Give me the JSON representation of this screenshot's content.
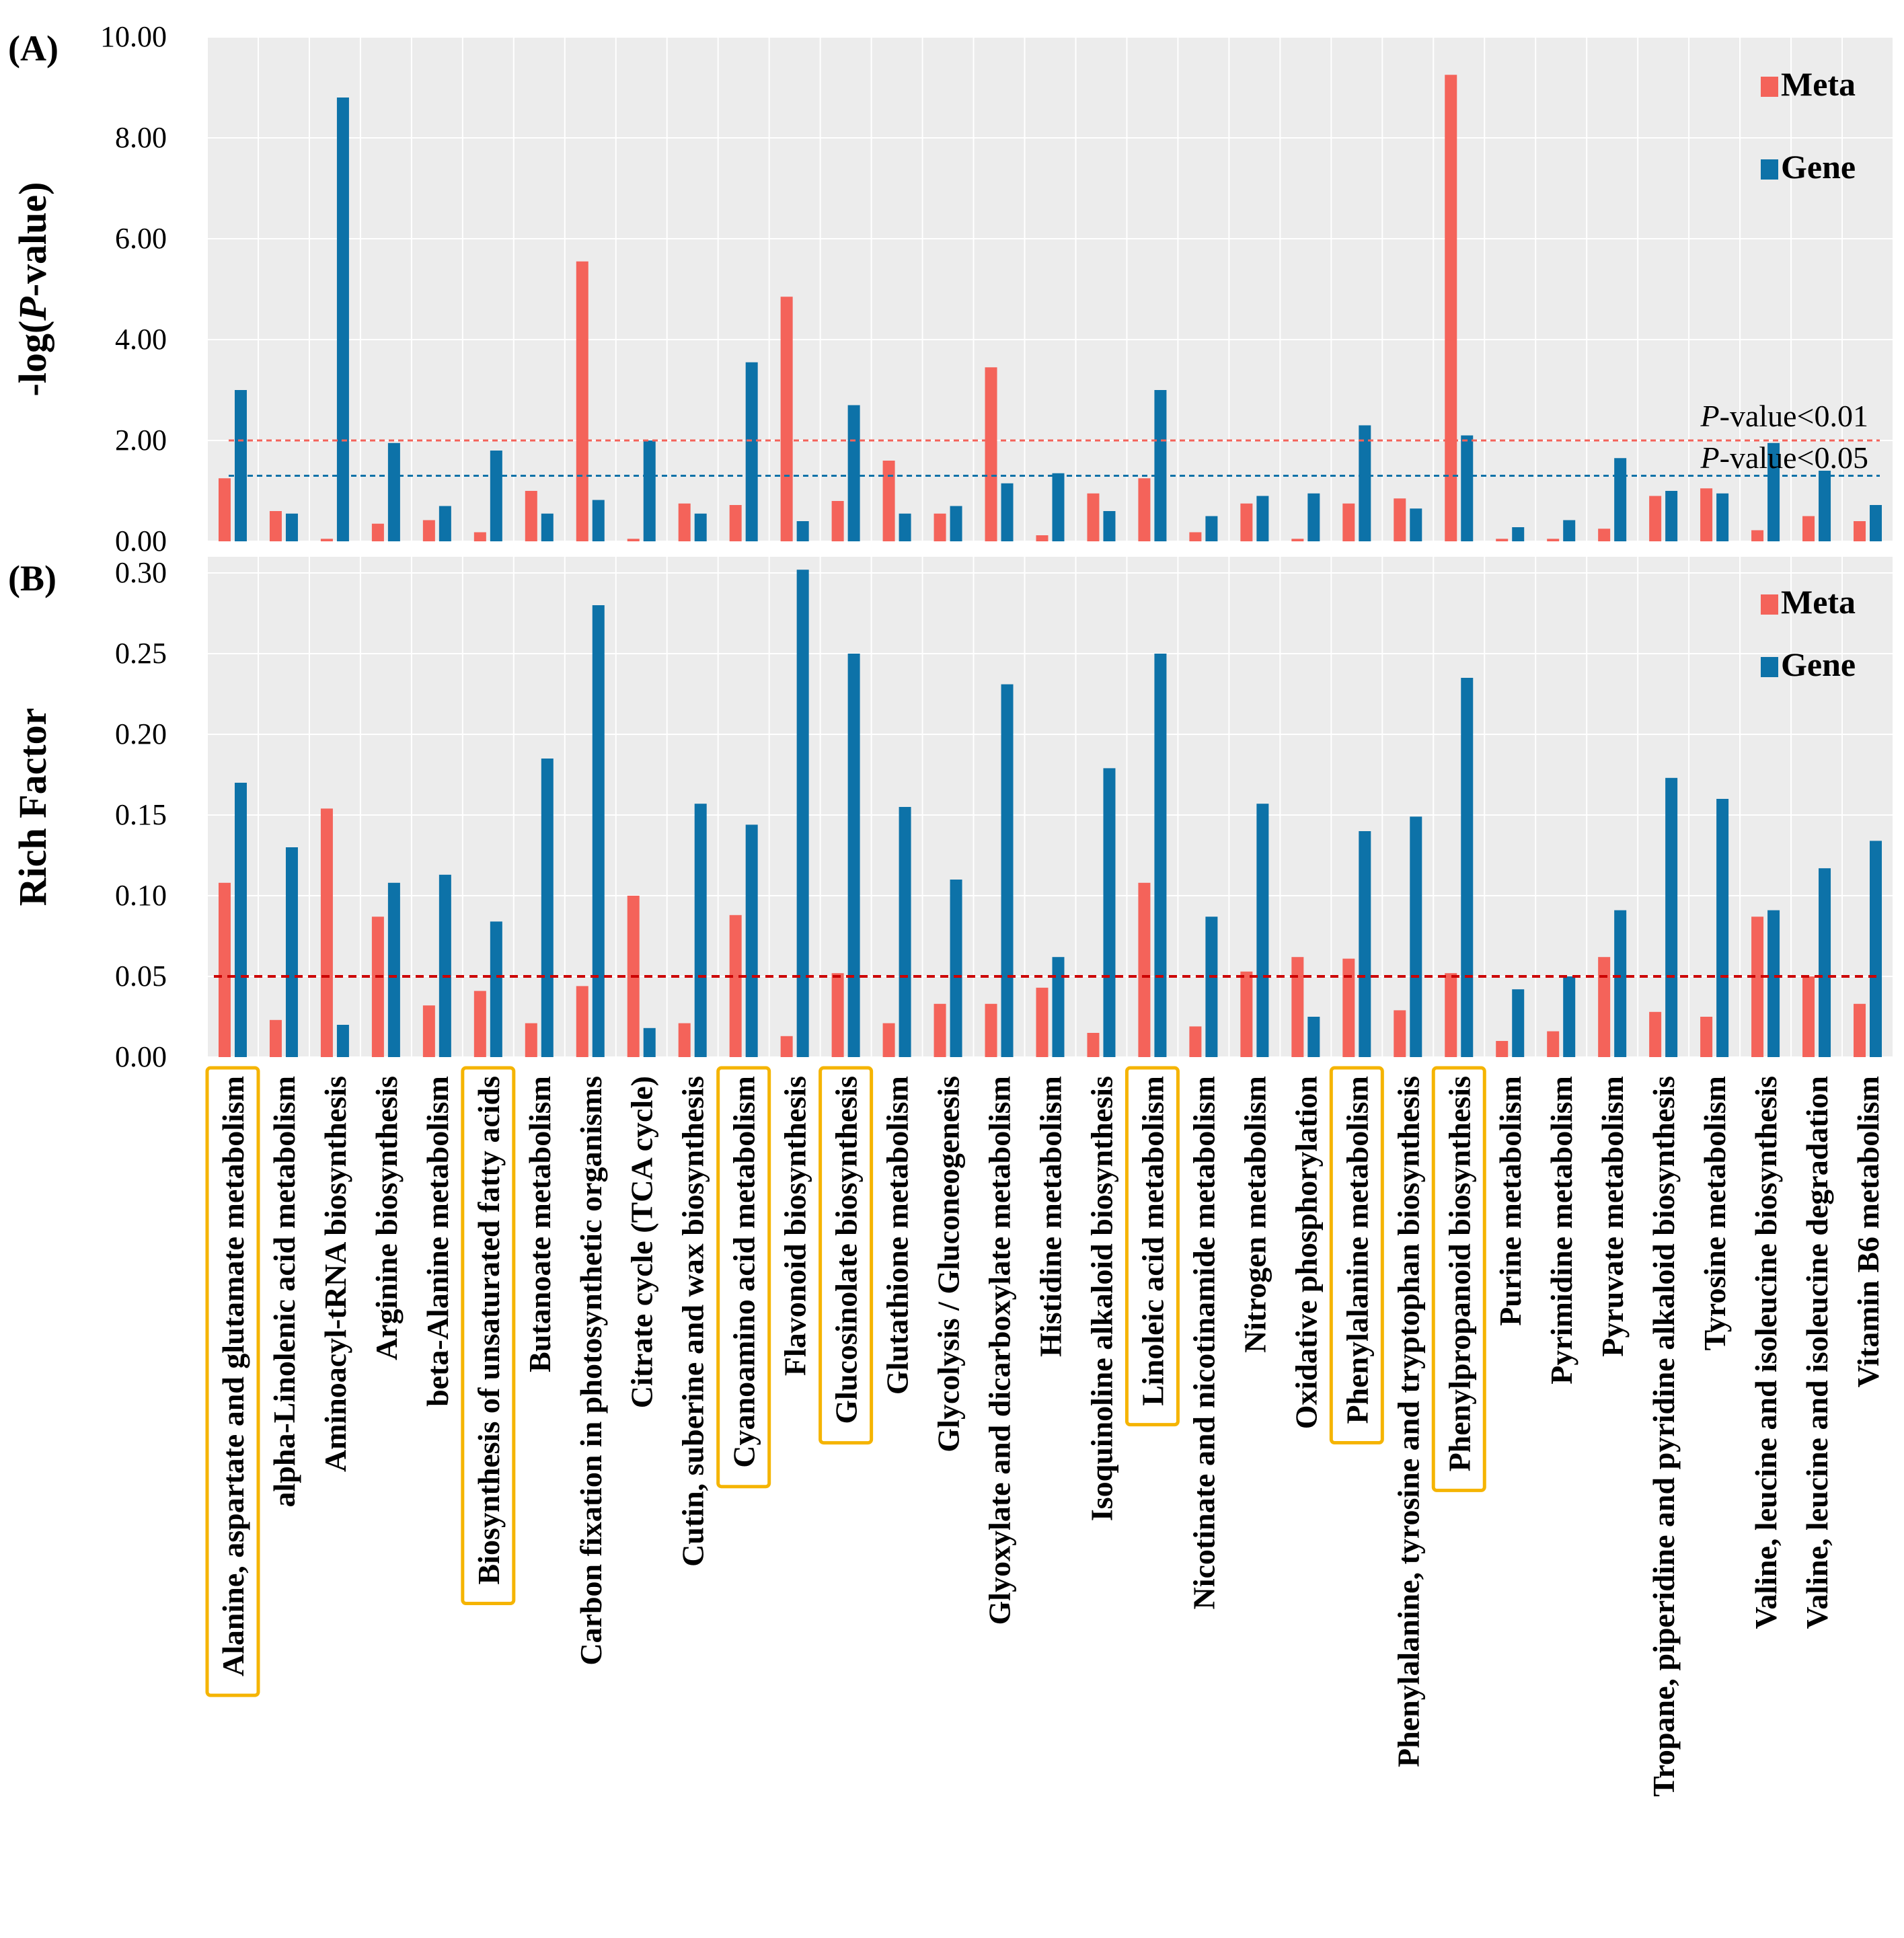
{
  "figure": {
    "panel_a_label": "(A)",
    "panel_b_label": "(B)"
  },
  "colors": {
    "meta": "#f4635a",
    "gene": "#0d72a8",
    "threshold_001": "#f4635a",
    "threshold_005": "#0d72a8",
    "rich_threshold": "#cc0000",
    "highlight_box": "#f5b400",
    "plot_bg": "#ececec",
    "grid": "#ffffff"
  },
  "highlighted_categories": [
    "Alanine, aspartate and glutamate metabolism",
    "Biosynthesis of unsaturated fatty acids",
    "Cyanoamino acid metabolism",
    "Glucosinolate biosynthesis",
    "Linoleic acid metabolism",
    "Phenylalanine metabolism",
    "Phenylpropanoid biosynthesis"
  ],
  "chart_data": [
    {
      "type": "bar",
      "panel": "A",
      "title": "",
      "ylabel": "-log(P-value)",
      "ylabel_prefix": "-log(",
      "ylabel_italic": "P",
      "ylabel_suffix": "-value)",
      "xlabel": "",
      "ylim": [
        0,
        10
      ],
      "yticks": [
        0,
        2,
        4,
        6,
        8,
        10
      ],
      "ytick_labels": [
        "0.00",
        "2.00",
        "4.00",
        "6.00",
        "8.00",
        "10.00"
      ],
      "grid": true,
      "legend_position": "top-right",
      "thresholds": [
        {
          "value": 2.0,
          "label_italic": "P",
          "label_rest": "-value<0.01",
          "color": "#f4635a"
        },
        {
          "value": 1.3,
          "label_italic": "P",
          "label_rest": "-value<0.05",
          "color": "#0d72a8"
        }
      ],
      "categories": [
        "Alanine, aspartate and glutamate metabolism",
        "alpha-Linolenic acid metabolism",
        "Aminoacyl-tRNA biosynthesis",
        "Arginine biosynthesis",
        "beta-Alanine metabolism",
        "Biosynthesis of unsaturated fatty acids",
        "Butanoate metabolism",
        "Carbon fixation in photosynthetic organisms",
        "Citrate cycle (TCA cycle)",
        "Cutin, suberine and wax biosynthesis",
        "Cyanoamino acid metabolism",
        "Flavonoid biosynthesis",
        "Glucosinolate biosynthesis",
        "Glutathione metabolism",
        "Glycolysis / Gluconeogenesis",
        "Glyoxylate and dicarboxylate metabolism",
        "Histidine metabolism",
        "Isoquinoline alkaloid biosynthesis",
        "Linoleic acid metabolism",
        "Nicotinate and nicotinamide metabolism",
        "Nitrogen metabolism",
        "Oxidative phosphorylation",
        "Phenylalanine metabolism",
        "Phenylalanine, tyrosine and tryptophan biosynthesis",
        "Phenylpropanoid biosynthesis",
        "Purine metabolism",
        "Pyrimidine metabolism",
        "Pyruvate metabolism",
        "Tropane, piperidine and pyridine alkaloid biosynthesis",
        "Tyrosine metabolism",
        "Valine, leucine and isoleucine biosynthesis",
        "Valine, leucine and isoleucine degradation",
        "Vitamin B6 metabolism"
      ],
      "series": [
        {
          "name": "Meta",
          "values": [
            1.25,
            0.6,
            0.05,
            0.35,
            0.42,
            0.18,
            1.0,
            5.55,
            0.05,
            0.75,
            0.72,
            4.85,
            0.8,
            1.6,
            0.55,
            3.45,
            0.12,
            0.95,
            1.25,
            0.18,
            0.75,
            0.05,
            0.75,
            0.85,
            9.25,
            0.05,
            0.05,
            0.25,
            0.9,
            1.05,
            0.22,
            0.5,
            0.4
          ]
        },
        {
          "name": "Gene",
          "values": [
            3.0,
            0.55,
            8.8,
            1.95,
            0.7,
            1.8,
            0.55,
            0.82,
            2.0,
            0.55,
            3.55,
            0.4,
            2.7,
            0.55,
            0.7,
            1.15,
            1.35,
            0.6,
            3.0,
            0.5,
            0.9,
            0.95,
            2.3,
            0.65,
            2.1,
            0.28,
            0.42,
            1.65,
            1.0,
            0.95,
            1.95,
            1.4,
            0.72
          ]
        }
      ]
    },
    {
      "type": "bar",
      "panel": "B",
      "title": "",
      "ylabel": "Rich Factor",
      "xlabel": "",
      "ylim": [
        0,
        0.31
      ],
      "yticks": [
        0,
        0.05,
        0.1,
        0.15,
        0.2,
        0.25,
        0.3
      ],
      "ytick_labels": [
        "0.00",
        "0.05",
        "0.10",
        "0.15",
        "0.20",
        "0.25",
        "0.30"
      ],
      "grid": true,
      "legend_position": "top-right",
      "thresholds": [
        {
          "value": 0.05,
          "label_italic": "",
          "label_rest": "",
          "color": "#cc0000"
        }
      ],
      "series": [
        {
          "name": "Meta",
          "values": [
            0.108,
            0.023,
            0.154,
            0.087,
            0.032,
            0.041,
            0.021,
            0.044,
            0.1,
            0.021,
            0.088,
            0.013,
            0.052,
            0.021,
            0.033,
            0.033,
            0.043,
            0.015,
            0.108,
            0.019,
            0.053,
            0.062,
            0.061,
            0.029,
            0.052,
            0.01,
            0.016,
            0.062,
            0.028,
            0.025,
            0.087,
            0.05,
            0.033
          ]
        },
        {
          "name": "Gene",
          "values": [
            0.17,
            0.13,
            0.02,
            0.108,
            0.113,
            0.084,
            0.185,
            0.28,
            0.018,
            0.157,
            0.144,
            0.302,
            0.25,
            0.155,
            0.11,
            0.231,
            0.062,
            0.179,
            0.25,
            0.087,
            0.157,
            0.025,
            0.14,
            0.149,
            0.235,
            0.042,
            0.05,
            0.091,
            0.173,
            0.16,
            0.091,
            0.117,
            0.134
          ]
        }
      ]
    }
  ]
}
